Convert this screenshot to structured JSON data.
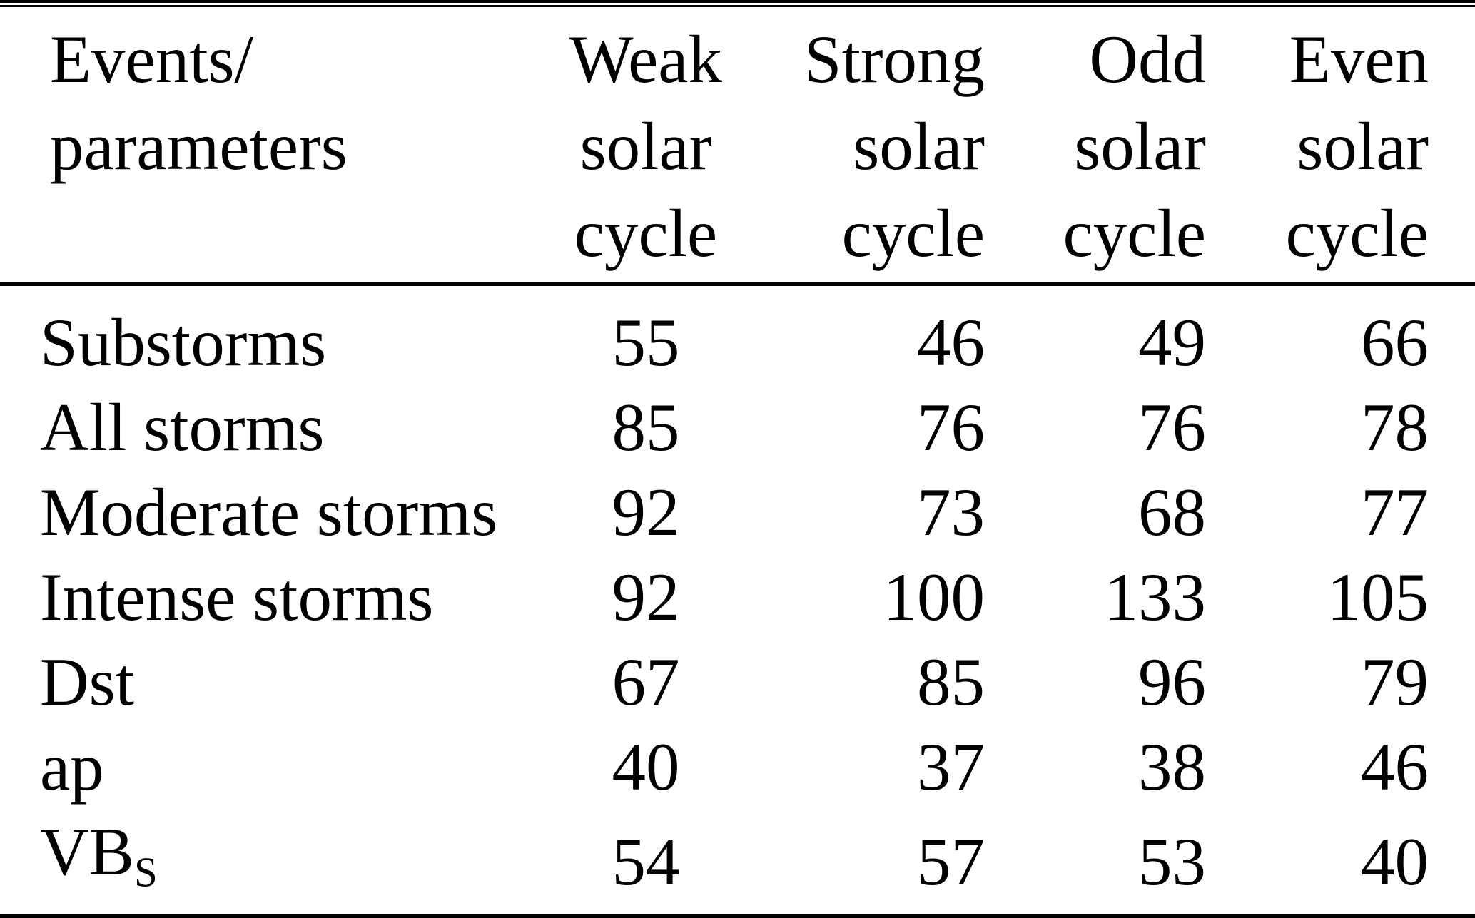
{
  "colors": {
    "background": "#ffffff",
    "text": "#000000",
    "rule": "#000000"
  },
  "table": {
    "header": {
      "col_events": {
        "line1": "Events/",
        "line2": "parameters"
      },
      "col_weak": {
        "line1": "Weak",
        "line2": "solar",
        "line3": "cycle"
      },
      "col_strong": {
        "line1": "Strong",
        "line2": "solar",
        "line3": "cycle"
      },
      "col_odd": {
        "line1": "Odd",
        "line2": "solar",
        "line3": "cycle"
      },
      "col_even": {
        "line1": "Even",
        "line2": "solar",
        "line3": "cycle"
      }
    },
    "rows": [
      {
        "label": "Substorms",
        "weak": "55",
        "strong": "46",
        "odd": "49",
        "even": "66"
      },
      {
        "label": "All storms",
        "weak": "85",
        "strong": "76",
        "odd": "76",
        "even": "78"
      },
      {
        "label": "Moderate storms",
        "weak": "92",
        "strong": "73",
        "odd": "68",
        "even": "77"
      },
      {
        "label": "Intense storms",
        "weak": "92",
        "strong": "100",
        "odd": "133",
        "even": "105"
      },
      {
        "label": "Dst",
        "weak": "67",
        "strong": "85",
        "odd": "96",
        "even": "79"
      },
      {
        "label": "ap",
        "weak": "40",
        "strong": "37",
        "odd": "38",
        "even": "46"
      },
      {
        "label": "VB",
        "label_subscript": "S",
        "weak": "54",
        "strong": "57",
        "odd": "53",
        "even": "40"
      }
    ]
  }
}
